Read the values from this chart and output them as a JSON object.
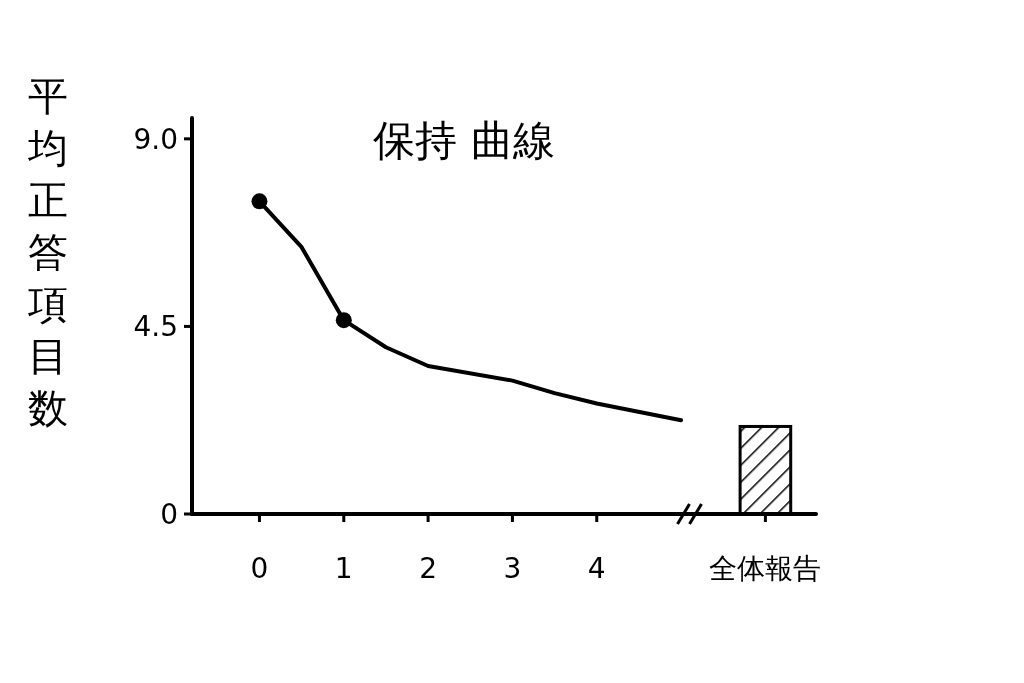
{
  "chart_data": {
    "type": "line",
    "title": "保持 曲線",
    "ylabel": "平均正答項目数",
    "xlim": [
      -0.8,
      6.6
    ],
    "xticks": [
      0,
      1,
      2,
      3,
      4,
      {
        "value": 6,
        "label": "全体報告"
      }
    ],
    "ylim": [
      0,
      9.5
    ],
    "yticks": [
      0,
      4.5,
      {
        "value": 9,
        "label": "9.0"
      }
    ],
    "grid": false,
    "series": [
      {
        "color": "#000000",
        "marker": "none",
        "x": [
          0,
          0.5,
          1,
          1.5,
          2,
          3,
          3.5,
          4,
          5
        ],
        "values": [
          7.5,
          6.4,
          4.65,
          4.0,
          3.55,
          3.2,
          2.9,
          2.65,
          2.25
        ]
      },
      {
        "type": "scatter",
        "color": "#000000",
        "marker": "circle",
        "x": [
          0,
          1
        ],
        "values": [
          7.5,
          4.65
        ]
      },
      {
        "type": "bar",
        "color": "#000000",
        "x": [
          6
        ],
        "values": [
          2.1
        ]
      }
    ]
  }
}
